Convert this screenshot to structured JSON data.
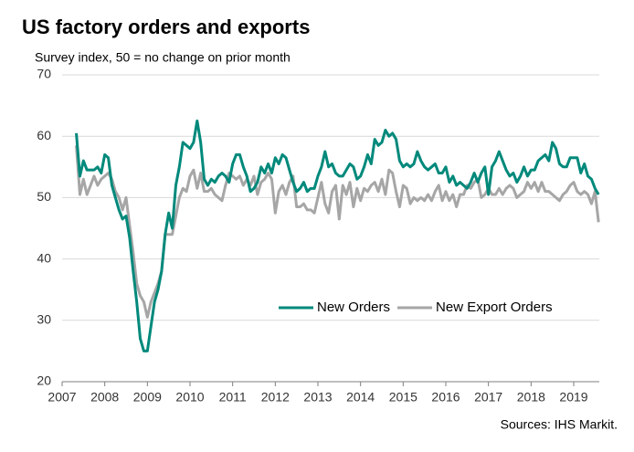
{
  "chart_data": {
    "type": "line",
    "title": "US factory orders and exports",
    "subtitle": "Survey index, 50 = no change on prior month",
    "source": "Sources: IHS Markit.",
    "x": [
      2007.333,
      2007.417,
      2007.5,
      2007.583,
      2007.667,
      2007.75,
      2007.833,
      2007.917,
      2008,
      2008.083,
      2008.167,
      2008.25,
      2008.333,
      2008.417,
      2008.5,
      2008.583,
      2008.667,
      2008.75,
      2008.833,
      2008.917,
      2009,
      2009.083,
      2009.167,
      2009.25,
      2009.333,
      2009.417,
      2009.5,
      2009.583,
      2009.667,
      2009.75,
      2009.833,
      2009.917,
      2010,
      2010.083,
      2010.167,
      2010.25,
      2010.333,
      2010.417,
      2010.5,
      2010.583,
      2010.667,
      2010.75,
      2010.833,
      2010.917,
      2011,
      2011.083,
      2011.167,
      2011.25,
      2011.333,
      2011.417,
      2011.5,
      2011.583,
      2011.667,
      2011.75,
      2011.833,
      2011.917,
      2012,
      2012.083,
      2012.167,
      2012.25,
      2012.333,
      2012.417,
      2012.5,
      2012.583,
      2012.667,
      2012.75,
      2012.833,
      2012.917,
      2013,
      2013.083,
      2013.167,
      2013.25,
      2013.333,
      2013.417,
      2013.5,
      2013.583,
      2013.667,
      2013.75,
      2013.833,
      2013.917,
      2014,
      2014.083,
      2014.167,
      2014.25,
      2014.333,
      2014.417,
      2014.5,
      2014.583,
      2014.667,
      2014.75,
      2014.833,
      2014.917,
      2015,
      2015.083,
      2015.167,
      2015.25,
      2015.333,
      2015.417,
      2015.5,
      2015.583,
      2015.667,
      2015.75,
      2015.833,
      2015.917,
      2016,
      2016.083,
      2016.167,
      2016.25,
      2016.333,
      2016.417,
      2016.5,
      2016.583,
      2016.667,
      2016.75,
      2016.833,
      2016.917,
      2017,
      2017.083,
      2017.167,
      2017.25,
      2017.333,
      2017.417,
      2017.5,
      2017.583,
      2017.667,
      2017.75,
      2017.833,
      2017.917,
      2018,
      2018.083,
      2018.167,
      2018.25,
      2018.333,
      2018.417,
      2018.5,
      2018.583,
      2018.667,
      2018.75,
      2018.833,
      2018.917,
      2019,
      2019.083,
      2019.167,
      2019.25,
      2019.333,
      2019.417,
      2019.5,
      2019.583
    ],
    "series": [
      {
        "name": "New Orders",
        "color": "#00897b",
        "values": [
          60.5,
          53.5,
          56,
          54.5,
          54.5,
          54.5,
          55,
          54,
          57,
          56.5,
          52,
          50,
          48,
          46.5,
          47,
          43.5,
          38,
          33,
          27,
          25,
          25,
          29,
          33,
          35,
          38,
          44,
          47.5,
          45,
          52,
          55,
          59,
          58.5,
          58,
          59,
          62.5,
          59,
          53,
          52,
          53,
          52.5,
          53.5,
          54,
          53.5,
          52.5,
          55.5,
          57,
          57,
          55,
          53.5,
          51,
          51.5,
          52.5,
          55,
          54,
          55.5,
          54,
          56.5,
          55.5,
          57,
          56.5,
          54.5,
          52.5,
          51,
          51.5,
          52.5,
          51,
          51.5,
          51.5,
          53.5,
          55,
          57.5,
          55,
          55.5,
          54,
          53.5,
          53.5,
          54.5,
          55.5,
          55,
          53,
          53.5,
          55,
          57,
          55.5,
          59.5,
          58.5,
          59,
          61,
          60,
          60.5,
          59.5,
          56,
          55,
          55.5,
          55,
          55.5,
          57.5,
          56,
          55,
          54.5,
          55,
          55.5,
          54,
          54,
          55,
          52.5,
          53.5,
          52,
          52.5,
          52,
          51.5,
          52.5,
          54,
          52.5,
          54,
          55,
          50.5,
          55,
          56,
          57.5,
          56,
          54.5,
          53.5,
          54,
          52.5,
          53.5,
          55,
          53.5,
          54.5,
          54.5,
          56,
          56.5,
          57,
          56,
          59,
          58,
          55.5,
          55,
          55,
          56.5,
          56.5,
          56.5,
          54,
          55.5,
          53.5,
          53,
          51.5,
          50.5
        ]
      },
      {
        "name": "New Export Orders",
        "color": "#a6a6a6",
        "values": [
          58.5,
          50.5,
          53,
          50.5,
          52,
          53.5,
          52,
          53,
          53.5,
          54,
          53,
          51,
          50,
          48,
          50,
          45.5,
          41,
          36,
          34,
          33,
          30.5,
          33,
          34.5,
          36,
          38,
          44,
          44,
          44,
          47,
          50,
          51.5,
          51,
          53.5,
          54.5,
          51.5,
          54,
          51,
          51,
          51.5,
          50.5,
          50,
          49.5,
          52,
          54,
          53.5,
          53,
          53.5,
          52,
          53,
          52,
          53.5,
          50.5,
          52.5,
          53,
          54,
          53,
          47.5,
          51,
          52,
          50.5,
          52.5,
          53.5,
          48.5,
          48.5,
          49,
          48,
          48,
          47.5,
          50,
          52.5,
          49,
          47.5,
          51,
          52,
          46.5,
          52,
          50.5,
          52.5,
          48.5,
          51.5,
          49.5,
          51.5,
          51,
          52,
          52.5,
          51,
          53,
          50.5,
          54.5,
          54,
          51,
          48.5,
          52,
          51.5,
          49,
          50,
          49.5,
          50,
          49.5,
          50.5,
          49.5,
          51,
          52,
          49.5,
          51,
          49.5,
          50.5,
          48.5,
          50.5,
          50.5,
          52,
          51.5,
          52.5,
          53,
          50,
          50.5,
          51.5,
          50.5,
          50.5,
          51.5,
          50.5,
          51.5,
          52,
          51.5,
          50,
          50.5,
          51,
          52.5,
          51.5,
          52.5,
          51,
          52.5,
          51,
          51,
          50.5,
          50,
          49.5,
          50.5,
          51,
          52,
          52.5,
          51,
          50.5,
          51,
          50.5,
          49,
          51,
          46
        ]
      }
    ],
    "xlim": [
      2007,
      2019.6
    ],
    "xticks": [
      2007,
      2008,
      2009,
      2010,
      2011,
      2012,
      2013,
      2014,
      2015,
      2016,
      2017,
      2018,
      2019
    ],
    "ylim": [
      20,
      70
    ],
    "yticks": [
      20,
      30,
      40,
      50,
      60,
      70
    ],
    "grid": true,
    "legend": "lower right"
  }
}
